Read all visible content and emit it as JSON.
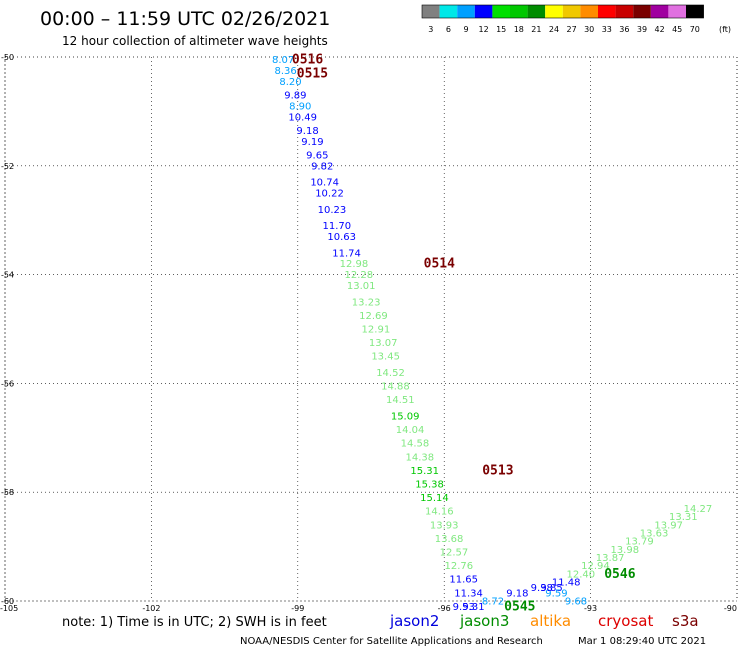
{
  "header": {
    "title": "00:00 – 11:59 UTC 02/26/2021",
    "subtitle": "12 hour collection of altimeter wave heights"
  },
  "color_scale": {
    "labels": [
      "3",
      "6",
      "9",
      "12",
      "15",
      "18",
      "21",
      "24",
      "27",
      "30",
      "33",
      "36",
      "39",
      "42",
      "45",
      "70"
    ],
    "unit": "(ft)",
    "colors": [
      "#808080",
      "#00e8e8",
      "#00a0ff",
      "#0000ff",
      "#00e000",
      "#00c800",
      "#008c00",
      "#ffff00",
      "#f0c800",
      "#ff8c00",
      "#ff0000",
      "#c80000",
      "#7a0000",
      "#a000a0",
      "#e070e0",
      "#000000"
    ]
  },
  "notes": {
    "text": "note:  1) Time is in UTC;  2) SWH is in feet",
    "credit": "NOAA/NESDIS Center for Satellite Applications and Research",
    "timestamp": "Mar  1 08:29:40 UTC 2021"
  },
  "satellites": [
    {
      "name": "jason2",
      "color": "#0000dd"
    },
    {
      "name": "jason3",
      "color": "#008c00"
    },
    {
      "name": "altika",
      "color": "#ff8c00"
    },
    {
      "name": "cryosat",
      "color": "#dd0000"
    },
    {
      "name": "s3a",
      "color": "#7a0000"
    }
  ],
  "chart_data": {
    "type": "scatter",
    "xlim": [
      -105,
      -90
    ],
    "ylim": [
      -60,
      -50
    ],
    "x_ticks": [
      -105,
      -102,
      -99,
      -96,
      -93,
      -90
    ],
    "y_ticks": [
      -50,
      -52,
      -54,
      -56,
      -58,
      -60
    ],
    "x_tick_labels": [
      "-105",
      "-102",
      "-99",
      "-96",
      "-93",
      "-90"
    ],
    "y_tick_labels": [
      "-50",
      "-52",
      "-54",
      "-56",
      "-58",
      "-60"
    ],
    "grid": true,
    "series": [
      {
        "name": "track_a",
        "points": [
          {
            "lon": -99.3,
            "lat": -50.05,
            "v": "8.07",
            "color": "#00a0ff"
          },
          {
            "lon": -99.25,
            "lat": -50.25,
            "v": "8.36",
            "color": "#00a0ff"
          },
          {
            "lon": -99.15,
            "lat": -50.45,
            "v": "8.20",
            "color": "#00a0ff"
          },
          {
            "lon": -99.05,
            "lat": -50.7,
            "v": "9.89",
            "color": "#0000ff"
          },
          {
            "lon": -98.95,
            "lat": -50.9,
            "v": "8.90",
            "color": "#00a0ff"
          },
          {
            "lon": -98.9,
            "lat": -51.1,
            "v": "10.49",
            "color": "#0000ff"
          },
          {
            "lon": -98.8,
            "lat": -51.35,
            "v": "9.18",
            "color": "#0000ff"
          },
          {
            "lon": -98.7,
            "lat": -51.55,
            "v": "9.19",
            "color": "#0000ff"
          },
          {
            "lon": -98.6,
            "lat": -51.8,
            "v": "9.65",
            "color": "#0000ff"
          },
          {
            "lon": -98.5,
            "lat": -52.0,
            "v": "9.82",
            "color": "#0000ff"
          },
          {
            "lon": -98.45,
            "lat": -52.3,
            "v": "10.74",
            "color": "#0000ff"
          },
          {
            "lon": -98.35,
            "lat": -52.5,
            "v": "10.22",
            "color": "#0000ff"
          },
          {
            "lon": -98.3,
            "lat": -52.8,
            "v": "10.23",
            "color": "#0000ff"
          },
          {
            "lon": -98.2,
            "lat": -53.1,
            "v": "11.70",
            "color": "#0000ff"
          },
          {
            "lon": -98.1,
            "lat": -53.3,
            "v": "10.63",
            "color": "#0000ff"
          },
          {
            "lon": -98.0,
            "lat": -53.6,
            "v": "11.74",
            "color": "#0000ff"
          },
          {
            "lon": -97.85,
            "lat": -53.8,
            "v": "12.98",
            "color": "#80e880"
          },
          {
            "lon": -97.75,
            "lat": -54.0,
            "v": "12.28",
            "color": "#80e880"
          },
          {
            "lon": -97.7,
            "lat": -54.2,
            "v": "13.01",
            "color": "#80e880"
          },
          {
            "lon": -97.6,
            "lat": -54.5,
            "v": "13.23",
            "color": "#80e880"
          },
          {
            "lon": -97.45,
            "lat": -54.75,
            "v": "12.69",
            "color": "#80e880"
          },
          {
            "lon": -97.4,
            "lat": -55.0,
            "v": "12.91",
            "color": "#80e880"
          },
          {
            "lon": -97.25,
            "lat": -55.25,
            "v": "13.07",
            "color": "#80e880"
          },
          {
            "lon": -97.2,
            "lat": -55.5,
            "v": "13.45",
            "color": "#80e880"
          },
          {
            "lon": -97.1,
            "lat": -55.8,
            "v": "14.52",
            "color": "#80e880"
          },
          {
            "lon": -97.0,
            "lat": -56.05,
            "v": "14.88",
            "color": "#80e880"
          },
          {
            "lon": -96.9,
            "lat": -56.3,
            "v": "14.51",
            "color": "#80e880"
          },
          {
            "lon": -96.8,
            "lat": -56.6,
            "v": "15.09",
            "color": "#00c800"
          },
          {
            "lon": -96.7,
            "lat": -56.85,
            "v": "14.04",
            "color": "#80e880"
          },
          {
            "lon": -96.6,
            "lat": -57.1,
            "v": "14.58",
            "color": "#80e880"
          },
          {
            "lon": -96.5,
            "lat": -57.35,
            "v": "14.38",
            "color": "#80e880"
          },
          {
            "lon": -96.4,
            "lat": -57.6,
            "v": "15.31",
            "color": "#00c800"
          },
          {
            "lon": -96.3,
            "lat": -57.85,
            "v": "15.38",
            "color": "#00c800"
          },
          {
            "lon": -96.2,
            "lat": -58.1,
            "v": "15.14",
            "color": "#00c800"
          },
          {
            "lon": -96.1,
            "lat": -58.35,
            "v": "14.16",
            "color": "#80e880"
          },
          {
            "lon": -96.0,
            "lat": -58.6,
            "v": "13.93",
            "color": "#80e880"
          },
          {
            "lon": -95.9,
            "lat": -58.85,
            "v": "13.68",
            "color": "#80e880"
          },
          {
            "lon": -95.8,
            "lat": -59.1,
            "v": "12.57",
            "color": "#80e880"
          },
          {
            "lon": -95.7,
            "lat": -59.35,
            "v": "12.76",
            "color": "#80e880"
          },
          {
            "lon": -95.6,
            "lat": -59.6,
            "v": "11.65",
            "color": "#0000ff"
          },
          {
            "lon": -95.5,
            "lat": -59.85,
            "v": "11.34",
            "color": "#0000ff"
          },
          {
            "lon": -95.4,
            "lat": -60.1,
            "v": "9.31",
            "color": "#0000ff"
          }
        ]
      },
      {
        "name": "track_b",
        "points": [
          {
            "lon": -90.8,
            "lat": -58.3,
            "v": "14.27",
            "color": "#80e880"
          },
          {
            "lon": -91.1,
            "lat": -58.45,
            "v": "13.31",
            "color": "#80e880"
          },
          {
            "lon": -91.4,
            "lat": -58.6,
            "v": "13.97",
            "color": "#80e880"
          },
          {
            "lon": -91.7,
            "lat": -58.75,
            "v": "13.63",
            "color": "#80e880"
          },
          {
            "lon": -92.0,
            "lat": -58.9,
            "v": "13.79",
            "color": "#80e880"
          },
          {
            "lon": -92.3,
            "lat": -59.05,
            "v": "13.98",
            "color": "#80e880"
          },
          {
            "lon": -92.6,
            "lat": -59.2,
            "v": "13.87",
            "color": "#80e880"
          },
          {
            "lon": -92.9,
            "lat": -59.35,
            "v": "12.94",
            "color": "#80e880"
          },
          {
            "lon": -93.2,
            "lat": -59.5,
            "v": "12.40",
            "color": "#80e880"
          },
          {
            "lon": -93.5,
            "lat": -59.65,
            "v": "11.48",
            "color": "#0000ff"
          },
          {
            "lon": -93.8,
            "lat": -59.75,
            "v": "9.85",
            "color": "#0000ff"
          }
        ]
      },
      {
        "name": "track_c",
        "points": [
          {
            "lon": -93.3,
            "lat": -60.0,
            "v": "9.68",
            "color": "#00a0ff"
          },
          {
            "lon": -93.7,
            "lat": -59.85,
            "v": "9.59",
            "color": "#00a0ff"
          },
          {
            "lon": -94.0,
            "lat": -59.75,
            "v": "9.38",
            "color": "#0000ff"
          },
          {
            "lon": -94.5,
            "lat": -59.85,
            "v": "9.18",
            "color": "#0000ff"
          },
          {
            "lon": -95.0,
            "lat": -60.0,
            "v": "8.72",
            "color": "#00a0ff"
          },
          {
            "lon": -95.6,
            "lat": -60.1,
            "v": "9.53",
            "color": "#0000ff"
          }
        ]
      }
    ],
    "pass_labels": [
      {
        "lon": -98.8,
        "lat": -50.05,
        "text": "0516",
        "color": "#7a0000"
      },
      {
        "lon": -98.7,
        "lat": -50.3,
        "text": "0515",
        "color": "#7a0000"
      },
      {
        "lon": -96.1,
        "lat": -53.8,
        "text": "0514",
        "color": "#7a0000"
      },
      {
        "lon": -94.9,
        "lat": -57.6,
        "text": "0513",
        "color": "#7a0000"
      },
      {
        "lon": -92.4,
        "lat": -59.5,
        "text": "0546",
        "color": "#008c00"
      },
      {
        "lon": -94.45,
        "lat": -60.1,
        "text": "0545",
        "color": "#008c00"
      }
    ]
  }
}
